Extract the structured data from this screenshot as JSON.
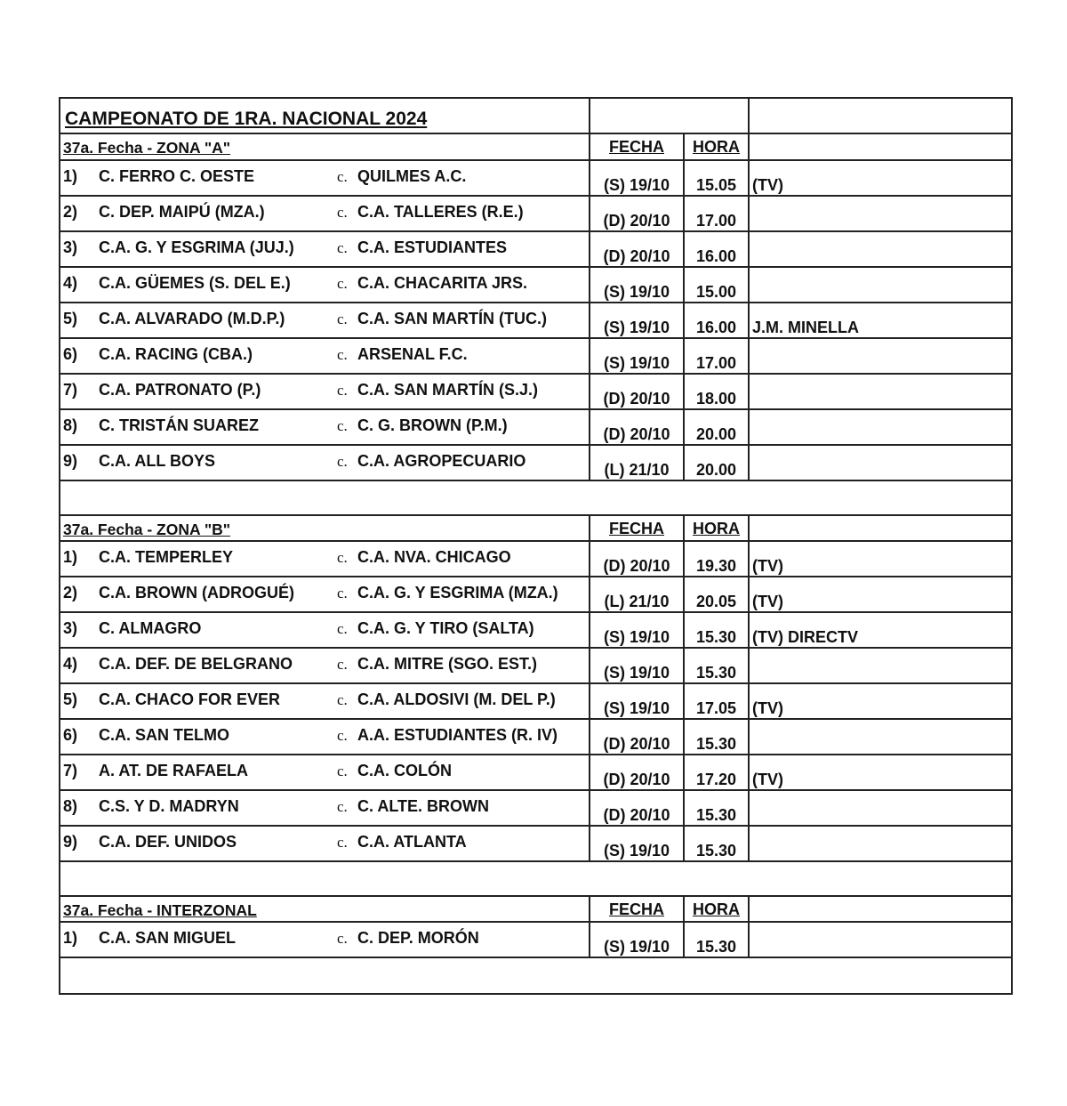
{
  "title": "CAMPEONATO DE 1RA. NACIONAL 2024",
  "sections": [
    {
      "heading": "37a. Fecha - ZONA \"A\"",
      "fecha_label": "FECHA",
      "hora_label": "HORA",
      "matches": [
        {
          "num": "1)",
          "home": "C. FERRO C. OESTE",
          "vs": "c.",
          "away": "QUILMES A.C.",
          "fecha": "(S) 19/10",
          "hora": "15.05",
          "extra": "(TV)"
        },
        {
          "num": "2)",
          "home": "C. DEP. MAIPÚ (MZA.)",
          "vs": "c.",
          "away": "C.A. TALLERES (R.E.)",
          "fecha": "(D) 20/10",
          "hora": "17.00",
          "extra": ""
        },
        {
          "num": "3)",
          "home": "C.A. G. Y ESGRIMA (JUJ.)",
          "vs": "c.",
          "away": "C.A. ESTUDIANTES",
          "fecha": "(D) 20/10",
          "hora": "16.00",
          "extra": ""
        },
        {
          "num": "4)",
          "home": "C.A. GÜEMES (S. DEL E.)",
          "vs": "c.",
          "away": "C.A. CHACARITA JRS.",
          "fecha": "(S) 19/10",
          "hora": "15.00",
          "extra": ""
        },
        {
          "num": "5)",
          "home": "C.A. ALVARADO (M.D.P.)",
          "vs": "c.",
          "away": "C.A. SAN MARTÍN (TUC.)",
          "fecha": "(S) 19/10",
          "hora": "16.00",
          "extra": "J.M. MINELLA"
        },
        {
          "num": "6)",
          "home": "C.A. RACING (CBA.)",
          "vs": "c.",
          "away": "ARSENAL F.C.",
          "fecha": "(S) 19/10",
          "hora": "17.00",
          "extra": ""
        },
        {
          "num": "7)",
          "home": "C.A. PATRONATO (P.)",
          "vs": "c.",
          "away": "C.A. SAN MARTÍN (S.J.)",
          "fecha": "(D) 20/10",
          "hora": "18.00",
          "extra": ""
        },
        {
          "num": "8)",
          "home": "C. TRISTÁN SUAREZ",
          "vs": "c.",
          "away": "C. G. BROWN (P.M.)",
          "fecha": "(D) 20/10",
          "hora": "20.00",
          "extra": ""
        },
        {
          "num": "9)",
          "home": "C.A. ALL BOYS",
          "vs": "c.",
          "away": "C.A. AGROPECUARIO",
          "fecha": "(L) 21/10",
          "hora": "20.00",
          "extra": ""
        }
      ]
    },
    {
      "heading": "37a. Fecha - ZONA \"B\"",
      "fecha_label": "FECHA",
      "hora_label": "HORA",
      "matches": [
        {
          "num": "1)",
          "home": "C.A. TEMPERLEY",
          "vs": "c.",
          "away": "C.A. NVA. CHICAGO",
          "fecha": "(D) 20/10",
          "hora": "19.30",
          "extra": "(TV)"
        },
        {
          "num": "2)",
          "home": "C.A. BROWN (ADROGUÉ)",
          "vs": "c.",
          "away": "C.A. G. Y ESGRIMA (MZA.)",
          "fecha": "(L) 21/10",
          "hora": "20.05",
          "extra": "(TV)"
        },
        {
          "num": "3)",
          "home": "C. ALMAGRO",
          "vs": "c.",
          "away": "C.A. G. Y TIRO (SALTA)",
          "fecha": "(S) 19/10",
          "hora": "15.30",
          "extra": "(TV)  DIRECTV"
        },
        {
          "num": "4)",
          "home": "C.A. DEF. DE BELGRANO",
          "vs": "c.",
          "away": "C.A. MITRE (SGO. EST.)",
          "fecha": "(S) 19/10",
          "hora": "15.30",
          "extra": ""
        },
        {
          "num": "5)",
          "home": "C.A. CHACO FOR EVER",
          "vs": "c.",
          "away": "C.A. ALDOSIVI (M. DEL P.)",
          "fecha": "(S) 19/10",
          "hora": "17.05",
          "extra": "(TV)"
        },
        {
          "num": "6)",
          "home": "C.A. SAN TELMO",
          "vs": "c.",
          "away": "A.A. ESTUDIANTES (R. IV)",
          "fecha": "(D) 20/10",
          "hora": "15.30",
          "extra": ""
        },
        {
          "num": "7)",
          "home": "A. AT. DE RAFAELA",
          "vs": "c.",
          "away": "C.A. COLÓN",
          "fecha": "(D) 20/10",
          "hora": "17.20",
          "extra": "(TV)"
        },
        {
          "num": "8)",
          "home": "C.S. Y D. MADRYN",
          "vs": "c.",
          "away": "C. ALTE. BROWN",
          "fecha": "(D) 20/10",
          "hora": "15.30",
          "extra": ""
        },
        {
          "num": "9)",
          "home": "C.A. DEF. UNIDOS",
          "vs": "c.",
          "away": "C.A. ATLANTA",
          "fecha": "(S) 19/10",
          "hora": "15.30",
          "extra": ""
        }
      ]
    },
    {
      "heading": "37a. Fecha - INTERZONAL",
      "fecha_label": "FECHA",
      "hora_label": "HORA",
      "matches": [
        {
          "num": "1)",
          "home": "C.A. SAN MIGUEL",
          "vs": "c.",
          "away": "C. DEP. MORÓN",
          "fecha": "(S) 19/10",
          "hora": "15.30",
          "extra": ""
        }
      ]
    }
  ]
}
